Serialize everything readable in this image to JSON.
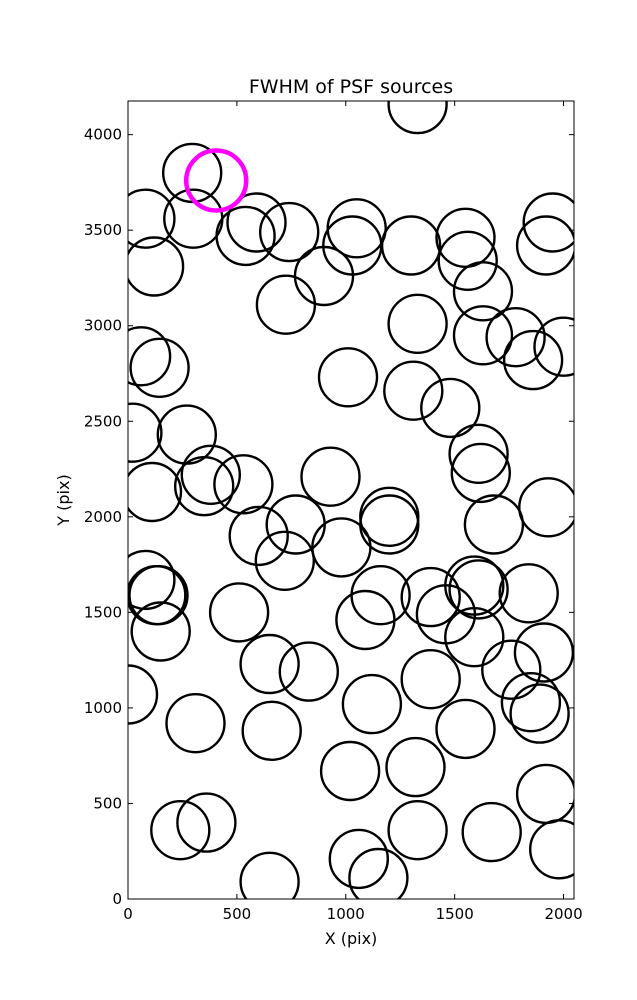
{
  "chart_data": {
    "type": "scatter",
    "title": "FWHM of PSF sources",
    "xlabel": "X (pix)",
    "ylabel": "Y (pix)",
    "xlim": [
      0,
      2048
    ],
    "ylim": [
      0,
      4176
    ],
    "xticks": [
      0,
      500,
      1000,
      1500,
      2000
    ],
    "yticks": [
      0,
      500,
      1000,
      1500,
      2000,
      2500,
      3000,
      3500,
      4000
    ],
    "grid": false,
    "marker": "open circle",
    "highlight_color": "#ff00ff",
    "series": [
      {
        "color": "#000000",
        "points": [
          [
            1330,
            4160
          ],
          [
            295,
            3800
          ],
          [
            80,
            3560
          ],
          [
            300,
            3560
          ],
          [
            540,
            3470
          ],
          [
            590,
            3540
          ],
          [
            740,
            3490
          ],
          [
            1050,
            3510
          ],
          [
            1030,
            3420
          ],
          [
            1300,
            3420
          ],
          [
            1550,
            3460
          ],
          [
            1560,
            3340
          ],
          [
            1630,
            3180
          ],
          [
            1950,
            3540
          ],
          [
            1920,
            3420
          ],
          [
            120,
            3310
          ],
          [
            900,
            3260
          ],
          [
            725,
            3110
          ],
          [
            1330,
            3010
          ],
          [
            1630,
            2950
          ],
          [
            1780,
            2940
          ],
          [
            1860,
            2820
          ],
          [
            2000,
            2890
          ],
          [
            60,
            2840
          ],
          [
            145,
            2780
          ],
          [
            1010,
            2730
          ],
          [
            1310,
            2660
          ],
          [
            1480,
            2570
          ],
          [
            20,
            2440
          ],
          [
            270,
            2430
          ],
          [
            1610,
            2330
          ],
          [
            1620,
            2230
          ],
          [
            380,
            2220
          ],
          [
            350,
            2160
          ],
          [
            530,
            2170
          ],
          [
            110,
            2130
          ],
          [
            930,
            2210
          ],
          [
            1680,
            1960
          ],
          [
            1930,
            2050
          ],
          [
            1200,
            2000
          ],
          [
            1200,
            1960
          ],
          [
            770,
            1960
          ],
          [
            600,
            1900
          ],
          [
            720,
            1770
          ],
          [
            980,
            1840
          ],
          [
            80,
            1670
          ],
          [
            130,
            1590
          ],
          [
            140,
            1590
          ],
          [
            150,
            1400
          ],
          [
            510,
            1500
          ],
          [
            1090,
            1460
          ],
          [
            1160,
            1590
          ],
          [
            1390,
            1580
          ],
          [
            1460,
            1490
          ],
          [
            1590,
            1640
          ],
          [
            1610,
            1620
          ],
          [
            1840,
            1600
          ],
          [
            1590,
            1370
          ],
          [
            1760,
            1200
          ],
          [
            1910,
            1290
          ],
          [
            1850,
            1030
          ],
          [
            1890,
            970
          ],
          [
            650,
            1230
          ],
          [
            830,
            1190
          ],
          [
            1390,
            1150
          ],
          [
            0,
            1070
          ],
          [
            310,
            920
          ],
          [
            660,
            880
          ],
          [
            1120,
            1020
          ],
          [
            1550,
            890
          ],
          [
            1020,
            670
          ],
          [
            1320,
            690
          ],
          [
            1920,
            550
          ],
          [
            360,
            400
          ],
          [
            240,
            360
          ],
          [
            1330,
            360
          ],
          [
            1670,
            350
          ],
          [
            1980,
            260
          ],
          [
            1060,
            210
          ],
          [
            1150,
            110
          ],
          [
            650,
            90
          ]
        ]
      },
      {
        "color": "#ff00ff",
        "points": [
          [
            405,
            3760
          ]
        ]
      }
    ]
  }
}
